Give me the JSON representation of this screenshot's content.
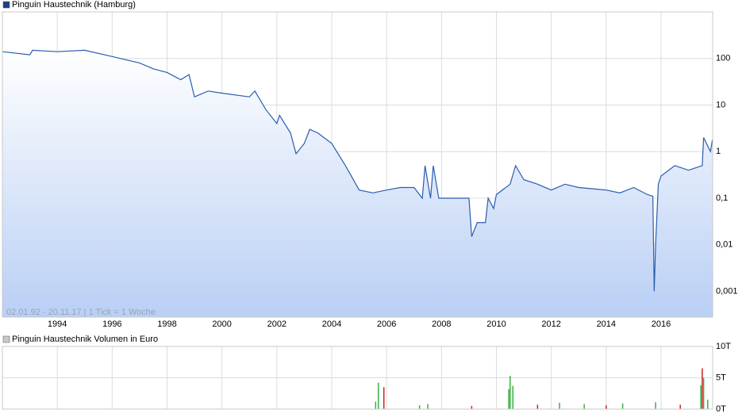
{
  "chart_data": [
    {
      "type": "line",
      "name": "Pinguin Haustechnik (Hamburg)",
      "color": "#2a5db0",
      "area": true,
      "log_scale": true,
      "grid": true,
      "annotation": "02.01.92 - 20.11.17 | 1 Tick = 1 Woche",
      "xlim": [
        1992,
        2017.88
      ],
      "xticks": [
        1994,
        1996,
        1998,
        2000,
        2002,
        2004,
        2006,
        2008,
        2010,
        2012,
        2014,
        2016
      ],
      "ylim": [
        0.00028,
        1000
      ],
      "yticks": [
        100,
        10,
        1,
        {
          "value": 0.1,
          "label": "0,1"
        },
        {
          "value": 0.01,
          "label": "0,01"
        },
        {
          "value": 0.001,
          "label": "0,001"
        }
      ],
      "x": [
        1992.0,
        1993.0,
        1993.1,
        1994.0,
        1995.0,
        1996.0,
        1997.0,
        1997.5,
        1998.0,
        1998.5,
        1998.8,
        1999.0,
        1999.5,
        2000.0,
        2001.0,
        2001.2,
        2001.6,
        2002.0,
        2002.1,
        2002.5,
        2002.7,
        2003.0,
        2003.2,
        2003.5,
        2004.0,
        2004.5,
        2005.0,
        2005.5,
        2006.0,
        2006.5,
        2007.0,
        2007.3,
        2007.4,
        2007.6,
        2007.7,
        2007.9,
        2009.0,
        2009.1,
        2009.3,
        2009.6,
        2009.7,
        2009.9,
        2010.0,
        2010.5,
        2010.7,
        2011.0,
        2011.5,
        2012.0,
        2012.5,
        2013.0,
        2014.0,
        2014.5,
        2015.0,
        2015.5,
        2015.7,
        2015.75,
        2015.8,
        2015.9,
        2016.0,
        2016.5,
        2017.0,
        2017.5,
        2017.55,
        2017.8,
        2017.87
      ],
      "values": [
        140,
        120,
        150,
        140,
        150,
        110,
        80,
        60,
        50,
        35,
        45,
        15,
        20,
        18,
        15,
        20,
        8,
        4,
        6,
        2.5,
        0.9,
        1.5,
        3,
        2.5,
        1.5,
        0.5,
        0.15,
        0.13,
        0.15,
        0.17,
        0.17,
        0.1,
        0.5,
        0.1,
        0.5,
        0.1,
        0.1,
        0.015,
        0.03,
        0.03,
        0.1,
        0.06,
        0.12,
        0.2,
        0.5,
        0.25,
        0.2,
        0.15,
        0.2,
        0.17,
        0.15,
        0.13,
        0.17,
        0.12,
        0.11,
        0.001,
        0.01,
        0.2,
        0.3,
        0.5,
        0.4,
        0.5,
        2,
        1,
        1.8
      ]
    },
    {
      "type": "bar",
      "name": "Pinguin Haustechnik Volumen in Euro",
      "color": "#c8c8c8",
      "grid": true,
      "show_xtick_labels": false,
      "xlim": [
        1992,
        2017.88
      ],
      "xticks": [
        1994,
        1996,
        1998,
        2000,
        2002,
        2004,
        2006,
        2008,
        2010,
        2012,
        2014,
        2016
      ],
      "ylim": [
        0,
        10
      ],
      "yticks": [
        {
          "value": 10,
          "label": "10T"
        },
        {
          "value": 5,
          "label": "5T"
        },
        {
          "value": 0,
          "label": "0T"
        }
      ],
      "x": [
        2005.6,
        2005.7,
        2005.9,
        2007.2,
        2007.5,
        2009.1,
        2010.45,
        2010.5,
        2010.6,
        2011.5,
        2012.3,
        2013.2,
        2014.0,
        2014.6,
        2015.8,
        2016.7,
        2017.45,
        2017.5,
        2017.55,
        2017.7
      ],
      "values": [
        1.2,
        4.2,
        3.5,
        0.6,
        0.8,
        0.5,
        3.2,
        5.3,
        3.7,
        0.7,
        1.0,
        0.8,
        0.6,
        0.9,
        1.1,
        0.7,
        3.8,
        6.5,
        5.0,
        1.5
      ],
      "bar_colors": [
        "#3cb043",
        "#3cb043",
        "#cc2222",
        "#3cb043",
        "#3cb043",
        "#cc2222",
        "#3cb043",
        "#3cb043",
        "#3cb043",
        "#cc2222",
        "#3cb043",
        "#3cb043",
        "#cc2222",
        "#3cb043",
        "#3cb043",
        "#cc2222",
        "#3cb043",
        "#cc2222",
        "#3cb043",
        "#3cb043"
      ]
    }
  ]
}
